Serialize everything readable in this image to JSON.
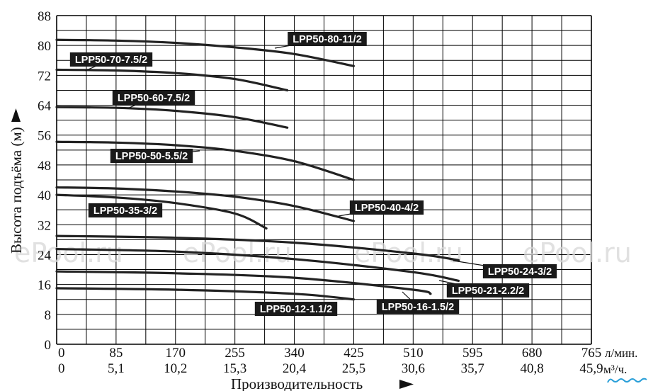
{
  "chart_data": {
    "type": "line",
    "xlabel": "Производительность",
    "ylabel": "Высота подъёма (м)",
    "x_unit": "л/мин.",
    "x2_unit": "м³/ч.",
    "xlim": [
      0,
      765
    ],
    "ylim": [
      0,
      88
    ],
    "x_ticks": [
      "0",
      "85",
      "170",
      "255",
      "340",
      "425",
      "510",
      "595",
      "680",
      "765"
    ],
    "x2_ticks": [
      "0",
      "5,1",
      "10,2",
      "15,3",
      "20,4",
      "25,5",
      "30,6",
      "35,7",
      "40,8",
      "45,9"
    ],
    "y_ticks": [
      "0",
      "8",
      "16",
      "24",
      "32",
      "40",
      "48",
      "56",
      "64",
      "72",
      "80",
      "88"
    ],
    "grid": true,
    "series": [
      {
        "name": "LPP50-80-11/2",
        "x": [
          0,
          85,
          170,
          255,
          340,
          425
        ],
        "y": [
          81.5,
          81.3,
          80.7,
          79.5,
          77.7,
          74.5
        ]
      },
      {
        "name": "LPP50-70-7.5/2",
        "x": [
          0,
          85,
          170,
          255,
          330
        ],
        "y": [
          73.5,
          73.3,
          72.6,
          71.0,
          68.0
        ]
      },
      {
        "name": "LPP50-60-7.5/2",
        "x": [
          0,
          85,
          170,
          255,
          330
        ],
        "y": [
          63.5,
          63.3,
          62.5,
          60.8,
          58.0
        ]
      },
      {
        "name": "LPP50-50-5.5/2",
        "x": [
          0,
          85,
          170,
          255,
          340,
          425
        ],
        "y": [
          54.2,
          54.0,
          53.3,
          51.8,
          49.0,
          44.0
        ]
      },
      {
        "name": "LPP50-40-4/2",
        "x": [
          0,
          85,
          170,
          255,
          340,
          425
        ],
        "y": [
          42.0,
          41.7,
          40.9,
          39.5,
          37.0,
          33.0
        ]
      },
      {
        "name": "LPP50-35-3/2",
        "x": [
          0,
          85,
          170,
          255,
          300
        ],
        "y": [
          40.0,
          39.3,
          37.8,
          35.0,
          31.0
        ]
      },
      {
        "name": "LPP50-24-3/2",
        "x": [
          0,
          170,
          340,
          510,
          575
        ],
        "y": [
          29.0,
          28.5,
          27.2,
          24.3,
          22.5
        ]
      },
      {
        "name": "LPP50-21-2.2/2",
        "x": [
          0,
          170,
          340,
          510,
          575
        ],
        "y": [
          25.5,
          24.8,
          22.8,
          19.3,
          17.0
        ]
      },
      {
        "name": "LPP50-16-1.5/2",
        "x": [
          0,
          170,
          340,
          510,
          535
        ],
        "y": [
          19.5,
          19.0,
          17.8,
          14.6,
          13.5
        ]
      },
      {
        "name": "LPP50-12-1.1/2",
        "x": [
          0,
          170,
          340,
          425
        ],
        "y": [
          15.0,
          14.6,
          13.5,
          12.0
        ]
      }
    ]
  },
  "labels": [
    {
      "text": "LPP50-80-11/2"
    },
    {
      "text": "LPP50-70-7.5/2"
    },
    {
      "text": "LPP50-60-7.5/2"
    },
    {
      "text": "LPP50-50-5.5/2"
    },
    {
      "text": "LPP50-40-4/2"
    },
    {
      "text": "LPP50-35-3/2"
    },
    {
      "text": "LPP50-24-3/2"
    },
    {
      "text": "LPP50-21-2.2/2"
    },
    {
      "text": "LPP50-16-1.5/2"
    },
    {
      "text": "LPP50-12-1.1/2"
    }
  ],
  "watermark": "ePool.ru",
  "logo_text": "epool.ru",
  "colors": {
    "line": "#222222",
    "label_bg": "#1a1a1a",
    "label_text": "#ffffff",
    "grid": "#000000",
    "watermark": "#d8d8d8",
    "logo": "#2a9fd8"
  }
}
